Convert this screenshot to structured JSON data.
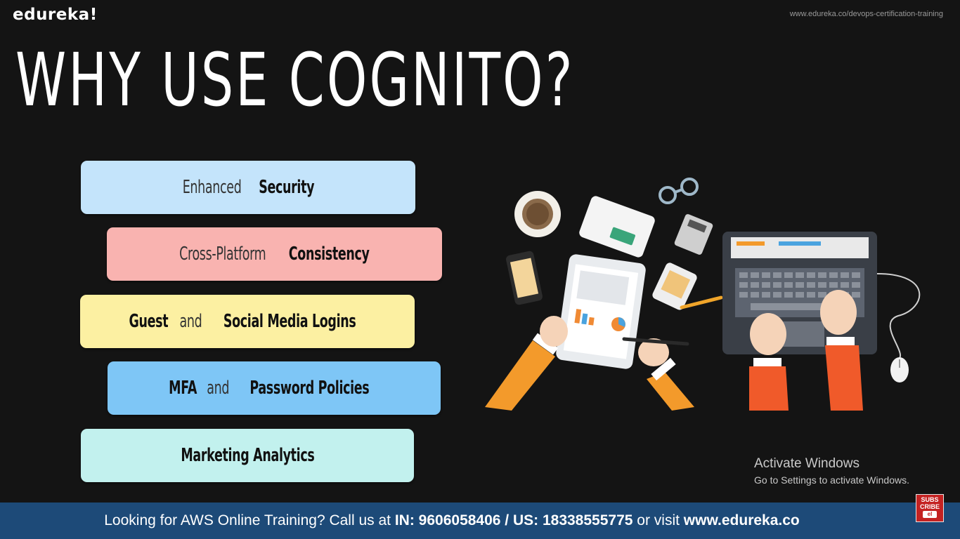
{
  "brand": "edureka!",
  "top_url": "www.edureka.co/devops-certification-training",
  "title": "WHY USE COGNITO?",
  "features": [
    {
      "light": "Enhanced",
      "bold": "Security",
      "color": "#c4e4fb"
    },
    {
      "light": "Cross-Platform",
      "bold": "Consistency",
      "color": "#f9b3b0"
    },
    {
      "bold_a": "Guest",
      "light": "and",
      "bold": "Social Media Logins",
      "color": "#fcf0a2"
    },
    {
      "bold_a": "MFA",
      "light": "and",
      "bold": "Password Policies",
      "color": "#7ec6f6"
    },
    {
      "bold": "Marketing Analytics",
      "color": "#c2f1ee"
    }
  ],
  "activate": {
    "title": "Activate Windows",
    "subtitle": "Go to Settings to activate Windows."
  },
  "footer": {
    "prefix": "Looking for AWS Online Training? Call us at ",
    "in_label": "IN: 9606058406 / US: 18338555775",
    "mid": " or visit ",
    "site": "www.edureka.co"
  },
  "subscribe": {
    "line1": "SUBS",
    "line2": "CRIBE",
    "line3": "el"
  },
  "colors": {
    "background": "#141414",
    "footer": "#1d4a78",
    "accent_orange": "#f39a2b"
  }
}
